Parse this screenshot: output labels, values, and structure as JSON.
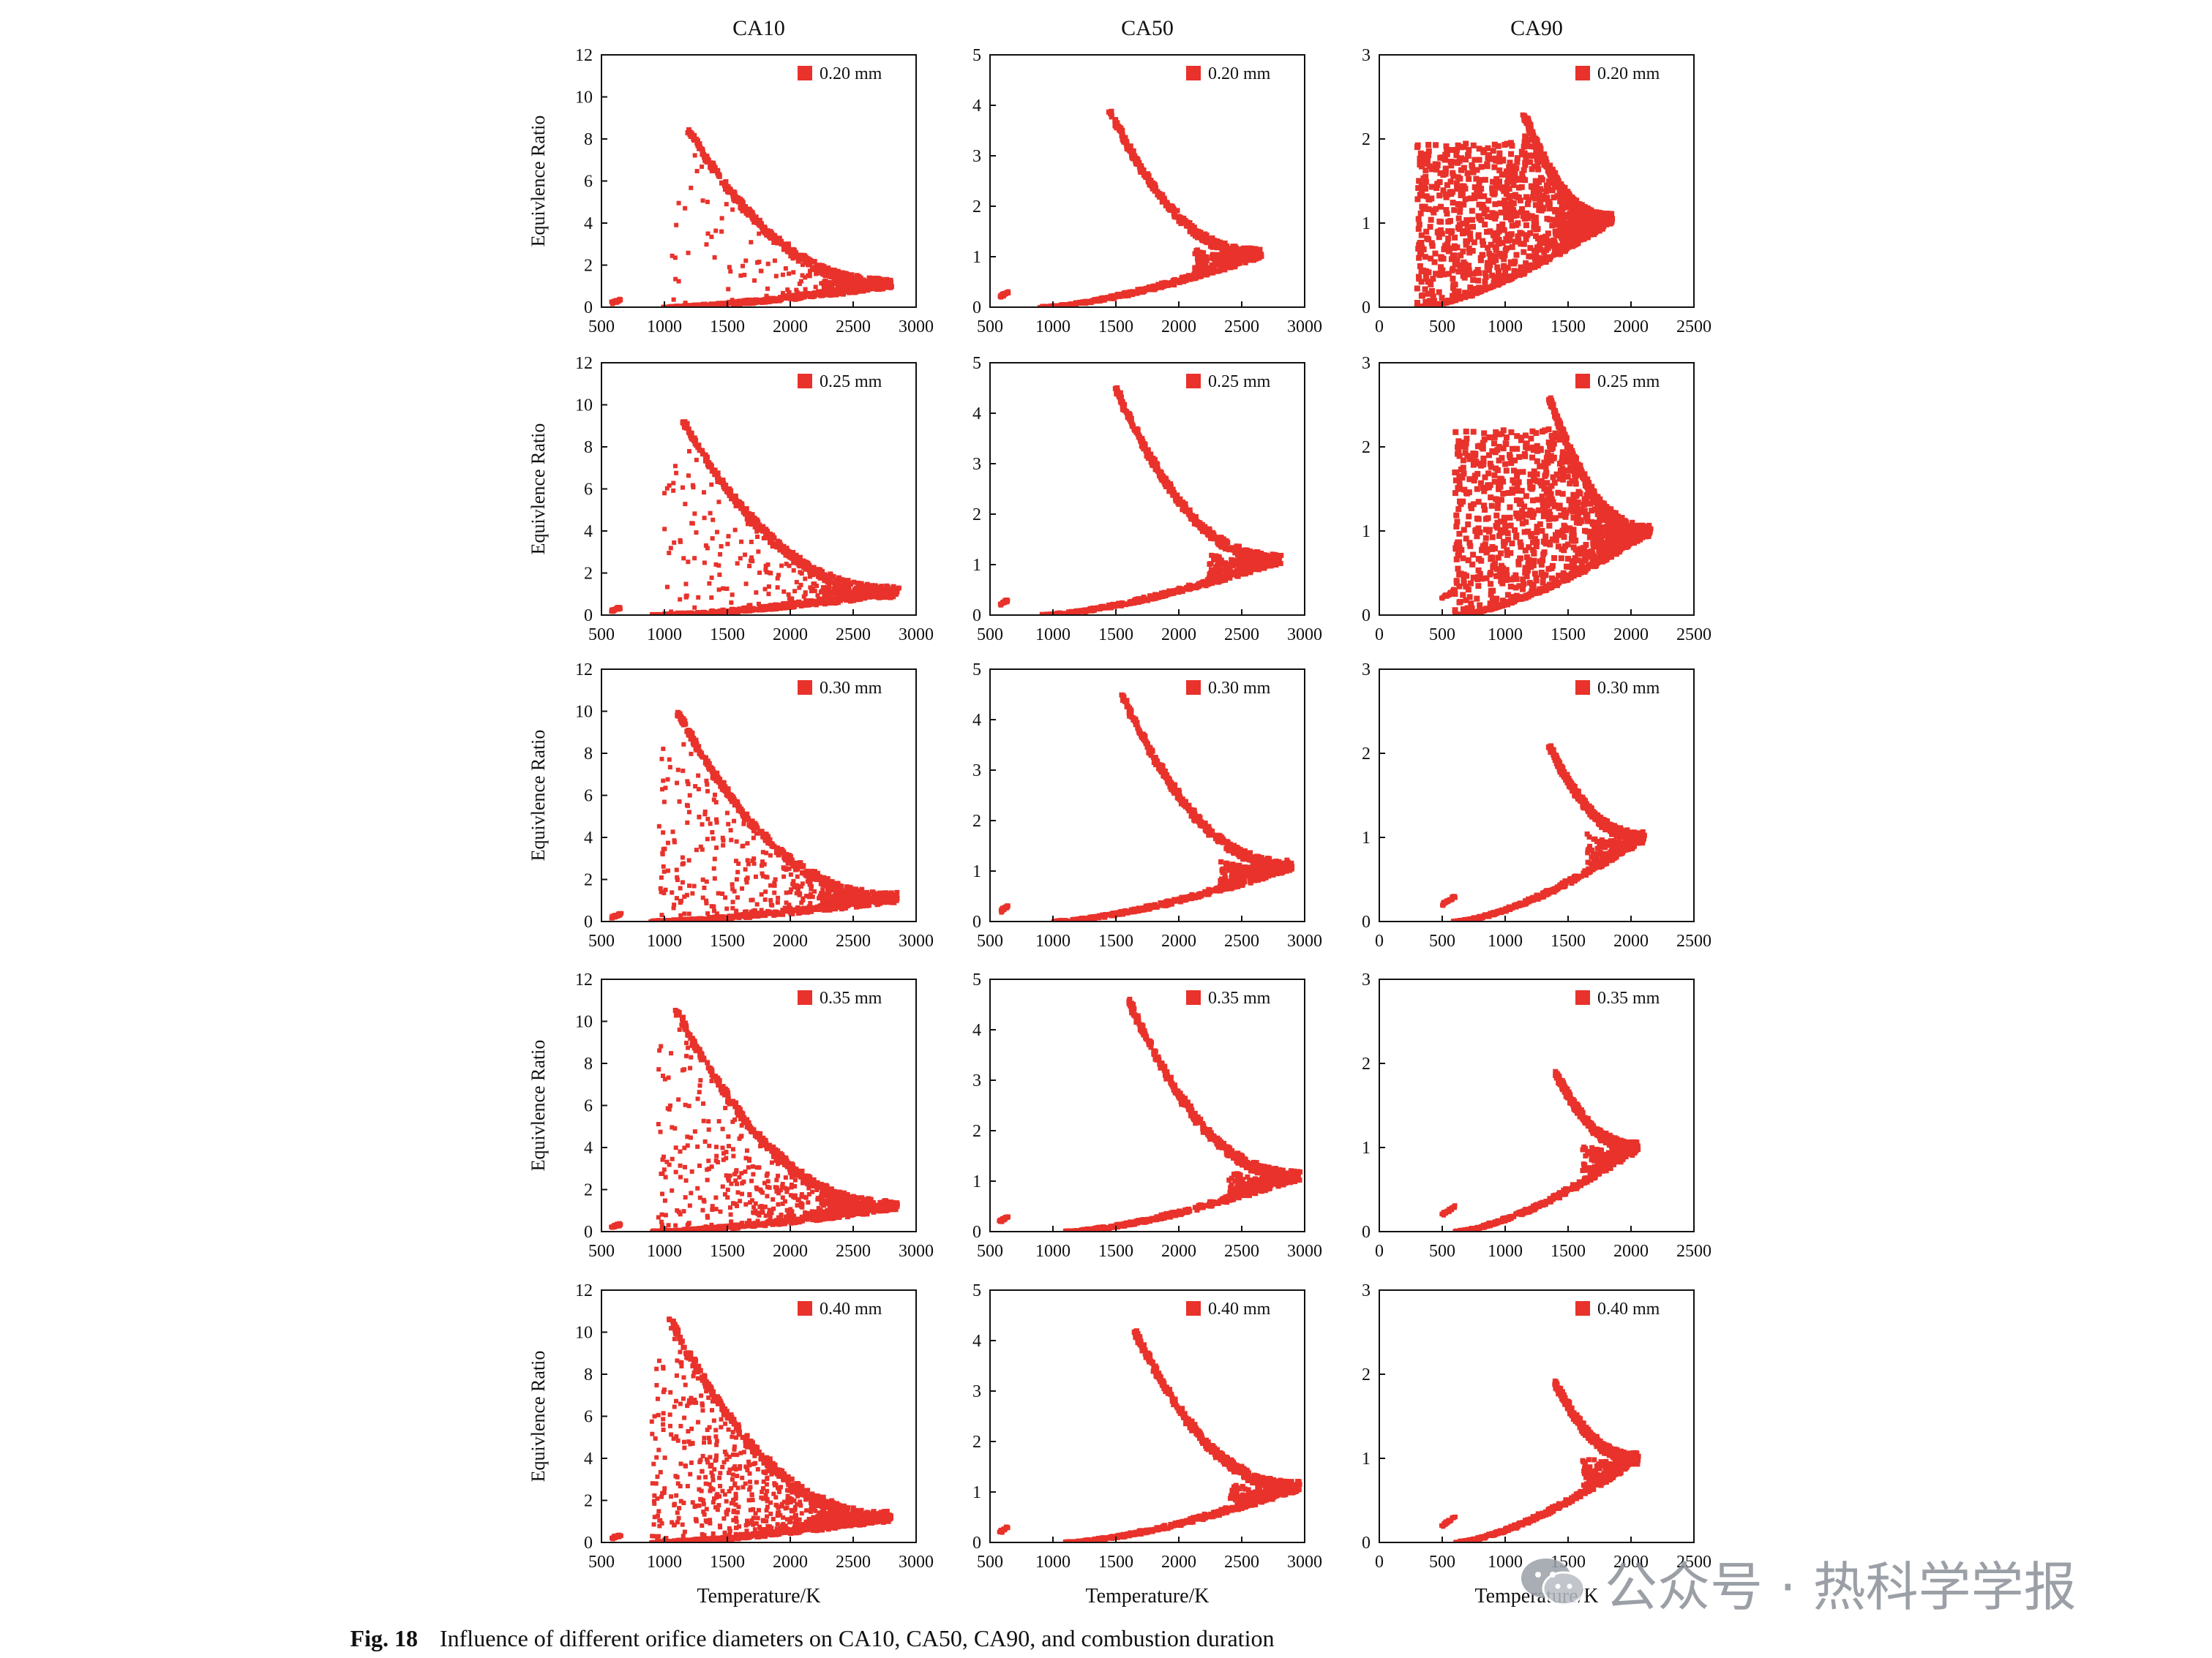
{
  "caption": {
    "label": "Fig. 18",
    "text": "Influence of different orifice diameters on CA10, CA50, CA90, and combustion duration"
  },
  "watermark": {
    "icon": "wechat-icon",
    "text": "公众号 · 热科学学报"
  },
  "colors": {
    "marker": "#e8322b",
    "axis": "#111111"
  },
  "chart_data": {
    "type": "scatter",
    "layout": "grid-5x3",
    "column_titles": [
      "CA10",
      "CA50",
      "CA90"
    ],
    "row_series": [
      "0.20 mm",
      "0.25 mm",
      "0.30 mm",
      "0.35 mm",
      "0.40 mm"
    ],
    "ylabel": "Equivlence Ratio",
    "xlabel": "Temperature/K",
    "legend_position": "top-right",
    "grid": false,
    "axes": {
      "CA10": {
        "xlim": [
          500,
          3000
        ],
        "xticks": [
          500,
          1000,
          1500,
          2000,
          2500,
          3000
        ],
        "ylim": [
          0,
          12
        ],
        "yticks": [
          0,
          2,
          4,
          6,
          8,
          10,
          12
        ]
      },
      "CA50": {
        "xlim": [
          500,
          3000
        ],
        "xticks": [
          500,
          1000,
          1500,
          2000,
          2500,
          3000
        ],
        "ylim": [
          0,
          5
        ],
        "yticks": [
          0,
          1,
          2,
          3,
          4,
          5
        ]
      },
      "CA90": {
        "xlim": [
          0,
          2500
        ],
        "xticks": [
          0,
          500,
          1000,
          1500,
          2000,
          2500
        ],
        "ylim": [
          0,
          3
        ],
        "yticks": [
          0,
          1,
          2,
          3
        ]
      }
    },
    "panels": [
      {
        "col": "CA10",
        "series": "0.20 mm",
        "apex": [
          1200,
          8.4
        ],
        "tip": [
          2800,
          1.1
        ],
        "lean_start": [
          1000,
          0
        ],
        "cluster": [
          [
            580,
            0.2
          ],
          [
            650,
            0.35
          ]
        ],
        "scatter_density": 0.15
      },
      {
        "col": "CA50",
        "series": "0.20 mm",
        "apex": [
          1450,
          3.9
        ],
        "tip": [
          2650,
          1.05
        ],
        "lean_start": [
          900,
          0
        ],
        "cluster": [
          [
            580,
            0.2
          ],
          [
            640,
            0.3
          ]
        ],
        "scatter_density": 0
      },
      {
        "col": "CA90",
        "series": "0.20 mm",
        "apex": [
          1150,
          2.3
        ],
        "tip": [
          1850,
          1.05
        ],
        "lean_start": [
          300,
          0
        ],
        "filled": true
      },
      {
        "col": "CA10",
        "series": "0.25 mm",
        "apex": [
          1150,
          9.2
        ],
        "tip": [
          2850,
          1.1
        ],
        "lean_start": [
          900,
          0
        ],
        "cluster": [
          [
            580,
            0.2
          ],
          [
            650,
            0.35
          ]
        ],
        "scatter_density": 0.35
      },
      {
        "col": "CA50",
        "series": "0.25 mm",
        "apex": [
          1500,
          4.5
        ],
        "tip": [
          2800,
          1.1
        ],
        "lean_start": [
          900,
          0
        ],
        "cluster": [
          [
            580,
            0.2
          ],
          [
            640,
            0.3
          ]
        ],
        "scatter_density": 0
      },
      {
        "col": "CA90",
        "series": "0.25 mm",
        "apex": [
          1350,
          2.6
        ],
        "tip": [
          2150,
          1.0
        ],
        "lean_start": [
          600,
          0
        ],
        "cluster": [
          [
            500,
            0.2
          ],
          [
            600,
            0.3
          ]
        ],
        "filled": true
      },
      {
        "col": "CA10",
        "series": "0.30 mm",
        "apex": [
          1100,
          10.0
        ],
        "tip": [
          2850,
          1.1
        ],
        "lean_start": [
          900,
          0
        ],
        "cluster": [
          [
            580,
            0.2
          ],
          [
            650,
            0.35
          ]
        ],
        "scatter_density": 0.55
      },
      {
        "col": "CA50",
        "series": "0.30 mm",
        "apex": [
          1550,
          4.5
        ],
        "tip": [
          2900,
          1.1
        ],
        "lean_start": [
          1000,
          0
        ],
        "cluster": [
          [
            580,
            0.2
          ],
          [
            640,
            0.3
          ]
        ],
        "scatter_density": 0
      },
      {
        "col": "CA90",
        "series": "0.30 mm",
        "apex": [
          1350,
          2.1
        ],
        "tip": [
          2100,
          1.0
        ],
        "lean_start": [
          600,
          0
        ],
        "cluster": [
          [
            500,
            0.2
          ],
          [
            600,
            0.3
          ]
        ],
        "filled": false
      },
      {
        "col": "CA10",
        "series": "0.35 mm",
        "apex": [
          1100,
          10.5
        ],
        "tip": [
          2850,
          1.2
        ],
        "lean_start": [
          900,
          0
        ],
        "cluster": [
          [
            580,
            0.2
          ],
          [
            650,
            0.35
          ]
        ],
        "scatter_density": 0.7
      },
      {
        "col": "CA50",
        "series": "0.35 mm",
        "apex": [
          1600,
          4.6
        ],
        "tip": [
          2950,
          1.1
        ],
        "lean_start": [
          1100,
          0
        ],
        "cluster": [
          [
            580,
            0.2
          ],
          [
            640,
            0.3
          ]
        ],
        "scatter_density": 0
      },
      {
        "col": "CA90",
        "series": "0.35 mm",
        "apex": [
          1400,
          1.9
        ],
        "tip": [
          2050,
          1.0
        ],
        "lean_start": [
          600,
          0
        ],
        "cluster": [
          [
            500,
            0.2
          ],
          [
            600,
            0.3
          ]
        ],
        "filled": false
      },
      {
        "col": "CA10",
        "series": "0.40 mm",
        "apex": [
          1050,
          10.6
        ],
        "tip": [
          2800,
          1.2
        ],
        "lean_start": [
          900,
          0
        ],
        "cluster": [
          [
            580,
            0.2
          ],
          [
            650,
            0.35
          ]
        ],
        "scatter_density": 1.0
      },
      {
        "col": "CA50",
        "series": "0.40 mm",
        "apex": [
          1650,
          4.2
        ],
        "tip": [
          2950,
          1.1
        ],
        "lean_start": [
          1100,
          0
        ],
        "cluster": [
          [
            580,
            0.2
          ],
          [
            640,
            0.3
          ]
        ],
        "scatter_density": 0
      },
      {
        "col": "CA90",
        "series": "0.40 mm",
        "apex": [
          1400,
          1.9
        ],
        "tip": [
          2050,
          1.0
        ],
        "lean_start": [
          600,
          0
        ],
        "cluster": [
          [
            500,
            0.2
          ],
          [
            600,
            0.3
          ]
        ],
        "filled": false
      }
    ]
  }
}
